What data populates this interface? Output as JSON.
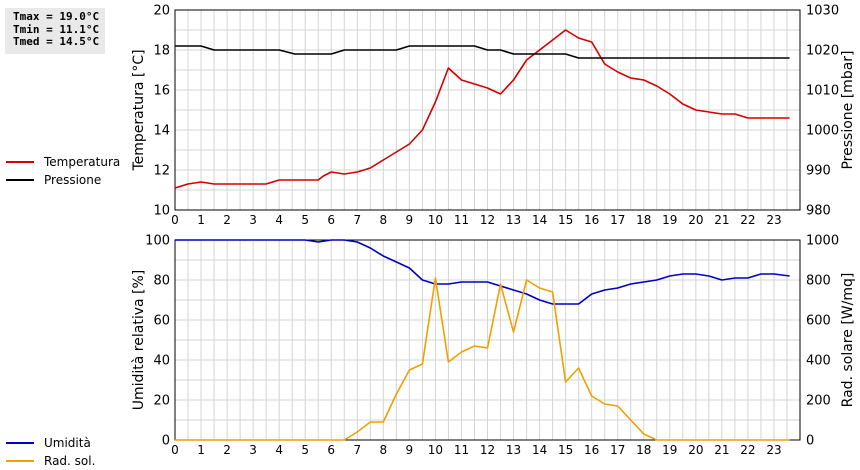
{
  "stats": {
    "tmax": "Tmax = 19.0°C",
    "tmin": "Tmin = 11.1°C",
    "tmed": "Tmed = 14.5°C"
  },
  "colors": {
    "temperature": "#d40000",
    "pressure": "#000000",
    "humidity": "#0000c0",
    "radiation": "#f0a000",
    "grid": "#d4d4d4"
  },
  "chart_data": [
    {
      "type": "line",
      "x_ticks": [
        "0",
        "1",
        "2",
        "3",
        "4",
        "5",
        "6",
        "7",
        "8",
        "9",
        "10",
        "11",
        "12",
        "13",
        "14",
        "15",
        "16",
        "17",
        "18",
        "19",
        "20",
        "21",
        "22",
        "23"
      ],
      "xlim": [
        0,
        24
      ],
      "ylabel": "Temperatura [°C]",
      "ylim": [
        10,
        20
      ],
      "y_ticks": [
        "10",
        "12",
        "14",
        "16",
        "18",
        "20"
      ],
      "y2label": "Pressione [mbar]",
      "y2lim": [
        980,
        1030
      ],
      "y2_ticks": [
        "980",
        "990",
        "1000",
        "1010",
        "1020",
        "1030"
      ],
      "grid": true,
      "legend_position": "left",
      "series": [
        {
          "name": "Temperatura",
          "axis": "left",
          "x": [
            0,
            0.5,
            1,
            1.5,
            2,
            3,
            3.5,
            4,
            4.5,
            5,
            5.5,
            5.7,
            6,
            6.5,
            7,
            7.5,
            8,
            8.5,
            9,
            9.5,
            10,
            10.5,
            11,
            11.5,
            12,
            12.5,
            13,
            13.5,
            14,
            14.5,
            15,
            15.5,
            16,
            16.5,
            17,
            17.5,
            18,
            18.5,
            19,
            19.5,
            20,
            20.5,
            21,
            21.5,
            22,
            23,
            23.6
          ],
          "y": [
            11.1,
            11.3,
            11.4,
            11.3,
            11.3,
            11.3,
            11.3,
            11.5,
            11.5,
            11.5,
            11.5,
            11.7,
            11.9,
            11.8,
            11.9,
            12.1,
            12.5,
            12.9,
            13.3,
            14.0,
            15.4,
            17.1,
            16.5,
            16.3,
            16.1,
            15.8,
            16.5,
            17.5,
            18.0,
            18.5,
            19.0,
            18.6,
            18.4,
            17.3,
            16.9,
            16.6,
            16.5,
            16.2,
            15.8,
            15.3,
            15.0,
            14.9,
            14.8,
            14.8,
            14.6,
            14.6,
            14.6
          ]
        },
        {
          "name": "Pressione",
          "axis": "right",
          "x": [
            0,
            1,
            1.5,
            2,
            3,
            4,
            4.6,
            5,
            6,
            6.5,
            7,
            8,
            8.5,
            9,
            10,
            11,
            11.5,
            12,
            12.5,
            13,
            14,
            15,
            15.5,
            16,
            17,
            18,
            19,
            20,
            21,
            22,
            23,
            23.6
          ],
          "y": [
            1021,
            1021,
            1020,
            1020,
            1020,
            1020,
            1019,
            1019,
            1019,
            1020,
            1020,
            1020,
            1020,
            1021,
            1021,
            1021,
            1021,
            1020,
            1020,
            1019,
            1019,
            1019,
            1018,
            1018,
            1018,
            1018,
            1018,
            1018,
            1018,
            1018,
            1018,
            1018
          ]
        }
      ]
    },
    {
      "type": "line",
      "x_ticks": [
        "0",
        "1",
        "2",
        "3",
        "4",
        "5",
        "6",
        "7",
        "8",
        "9",
        "10",
        "11",
        "12",
        "13",
        "14",
        "15",
        "16",
        "17",
        "18",
        "19",
        "20",
        "21",
        "22",
        "23"
      ],
      "xlim": [
        0,
        24
      ],
      "ylabel": "Umidità relativa [%]",
      "ylim": [
        0,
        100
      ],
      "y_ticks": [
        "0",
        "20",
        "40",
        "60",
        "80",
        "100"
      ],
      "y2label": "Rad. solare [W/mq]",
      "y2lim": [
        0,
        1000
      ],
      "y2_ticks": [
        "0",
        "200",
        "400",
        "600",
        "800",
        "1000"
      ],
      "grid": true,
      "legend_position": "left",
      "series": [
        {
          "name": "Umidità",
          "axis": "left",
          "x": [
            0,
            1,
            2,
            3,
            4,
            5,
            5.5,
            6,
            6.5,
            7,
            7.5,
            8,
            8.5,
            9,
            9.5,
            10,
            10.5,
            11,
            11.5,
            12,
            12.5,
            13,
            13.5,
            14,
            14.5,
            15,
            15.5,
            16,
            16.5,
            17,
            17.5,
            18,
            18.5,
            19,
            19.5,
            20,
            20.5,
            21,
            21.5,
            22,
            22.5,
            23,
            23.6
          ],
          "y": [
            100,
            100,
            100,
            100,
            100,
            100,
            99,
            100,
            100,
            99,
            96,
            92,
            89,
            86,
            80,
            78,
            78,
            79,
            79,
            79,
            77,
            75,
            73,
            70,
            68,
            68,
            68,
            73,
            75,
            76,
            78,
            79,
            80,
            82,
            83,
            83,
            82,
            80,
            81,
            81,
            83,
            83,
            82
          ]
        },
        {
          "name": "Rad. sol.",
          "axis": "right",
          "x": [
            0,
            1,
            2,
            3,
            4,
            5,
            6,
            6.5,
            7,
            7.5,
            8,
            8.5,
            9,
            9.5,
            10,
            10.5,
            11,
            11.5,
            12,
            12.5,
            13,
            13.5,
            14,
            14.5,
            15,
            15.5,
            16,
            16.5,
            17,
            17.5,
            18,
            18.5,
            19,
            20,
            21,
            22,
            23,
            23.6
          ],
          "y": [
            0,
            0,
            0,
            0,
            0,
            0,
            0,
            0,
            40,
            90,
            90,
            230,
            350,
            380,
            810,
            390,
            440,
            470,
            460,
            780,
            540,
            800,
            760,
            740,
            290,
            360,
            220,
            180,
            170,
            100,
            30,
            0,
            0,
            0,
            0,
            0,
            0,
            0
          ]
        }
      ]
    }
  ]
}
